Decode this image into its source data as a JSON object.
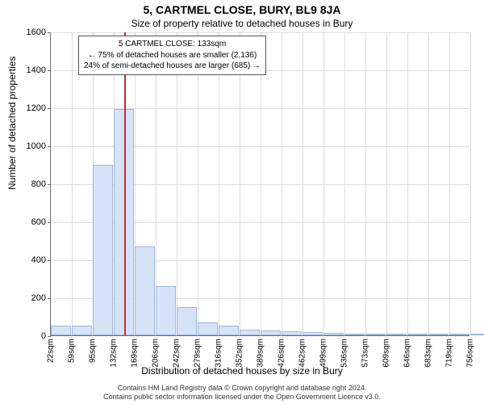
{
  "header": {
    "title": "5, CARTMEL CLOSE, BURY, BL9 8JA",
    "subtitle": "Size of property relative to detached houses in Bury"
  },
  "axes": {
    "ylabel": "Number of detached properties",
    "xlabel": "Distribution of detached houses by size in Bury"
  },
  "chart": {
    "type": "histogram",
    "ylim_max": 1600,
    "yticks": [
      0,
      200,
      400,
      600,
      800,
      1000,
      1200,
      1400,
      1600
    ],
    "xticks": [
      "22sqm",
      "59sqm",
      "95sqm",
      "132sqm",
      "169sqm",
      "206sqm",
      "242sqm",
      "279sqm",
      "316sqm",
      "352sqm",
      "389sqm",
      "426sqm",
      "462sqm",
      "499sqm",
      "536sqm",
      "573sqm",
      "609sqm",
      "646sqm",
      "683sqm",
      "719sqm",
      "756sqm"
    ],
    "bars": [
      50,
      50,
      900,
      1190,
      470,
      260,
      150,
      70,
      50,
      30,
      25,
      20,
      15,
      12,
      10,
      8,
      6,
      5,
      4,
      3,
      3
    ],
    "bar_fill": "#d6e2f5",
    "bar_border": "#9fb6db",
    "grid_color": "#dcdcdc",
    "axis_color": "#6a6a7a",
    "marker_color": "#c23030",
    "marker_index": 3,
    "background_color": "#ffffff"
  },
  "annotation": {
    "line1": "5 CARTMEL CLOSE: 133sqm",
    "line2": "← 75% of detached houses are smaller (2,136)",
    "line3": "24% of semi-detached houses are larger (685) →"
  },
  "footer": {
    "line1": "Contains HM Land Registry data © Crown copyright and database right 2024.",
    "line2": "Contains public sector information licensed under the Open Government Licence v3.0."
  }
}
